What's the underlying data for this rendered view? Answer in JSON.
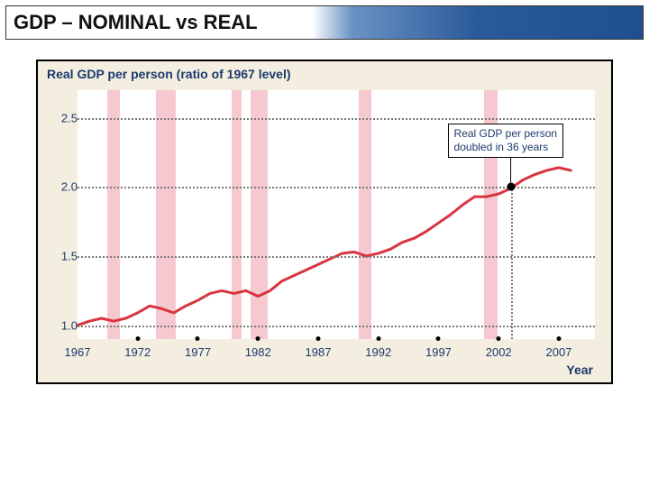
{
  "header": {
    "title_left": "GDP – NOMINAL vs REAL"
  },
  "chart": {
    "type": "line",
    "title": "Real GDP per person (ratio of 1967 level)",
    "xlabel": "Year",
    "background_color": "#f4eee1",
    "plot_background": "#ffffff",
    "line_color": "#d9343f",
    "line_width": 3,
    "grid_color": "#7a7a7a",
    "grid_style": "dotted",
    "title_color": "#1b3a6b",
    "label_color": "#1b3a6b",
    "title_fontsize": 14,
    "tick_fontsize": 13,
    "x_ticks": [
      1967,
      1972,
      1977,
      1982,
      1987,
      1992,
      1997,
      2002,
      2007
    ],
    "y_ticks": [
      1.0,
      1.5,
      2.0,
      2.5
    ],
    "xlim": [
      1967,
      2010
    ],
    "ylim": [
      0.9,
      2.7
    ],
    "recession_bands": [
      {
        "start": 1969.5,
        "end": 1970.5
      },
      {
        "start": 1973.5,
        "end": 1975.2
      },
      {
        "start": 1979.8,
        "end": 1980.6
      },
      {
        "start": 1981.4,
        "end": 1982.8
      },
      {
        "start": 1990.4,
        "end": 1991.4
      },
      {
        "start": 2000.8,
        "end": 2001.9
      }
    ],
    "recession_color": "#f6c8cf",
    "series": {
      "years": [
        1967,
        1968,
        1969,
        1970,
        1971,
        1972,
        1973,
        1974,
        1975,
        1976,
        1977,
        1978,
        1979,
        1980,
        1981,
        1982,
        1983,
        1984,
        1985,
        1986,
        1987,
        1988,
        1989,
        1990,
        1991,
        1992,
        1993,
        1994,
        1995,
        1996,
        1997,
        1998,
        1999,
        2000,
        2001,
        2002,
        2003,
        2004,
        2005,
        2006,
        2007,
        2008
      ],
      "values": [
        1.0,
        1.03,
        1.05,
        1.03,
        1.05,
        1.09,
        1.14,
        1.12,
        1.09,
        1.14,
        1.18,
        1.23,
        1.25,
        1.23,
        1.25,
        1.21,
        1.25,
        1.32,
        1.36,
        1.4,
        1.44,
        1.48,
        1.52,
        1.53,
        1.5,
        1.52,
        1.55,
        1.6,
        1.63,
        1.68,
        1.74,
        1.8,
        1.87,
        1.93,
        1.93,
        1.95,
        1.99,
        2.05,
        2.09,
        2.12,
        2.14,
        2.12
      ]
    },
    "annotation": {
      "text_line1": "Real GDP per person",
      "text_line2": "doubled in 36 years",
      "point_year": 2003,
      "point_value": 2.0,
      "box_border": "#000000",
      "box_bg": "#ffffff"
    }
  }
}
